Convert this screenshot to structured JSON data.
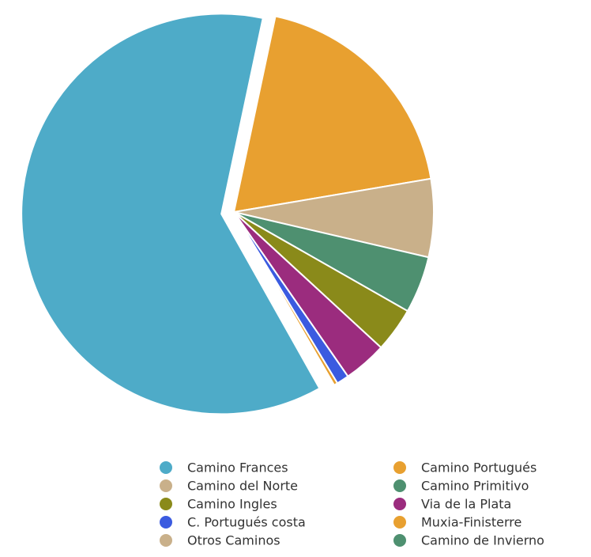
{
  "chart_data": {
    "type": "pie",
    "categories": [
      "Camino Frances",
      "Camino Portugués",
      "Camino del Norte",
      "Camino Primitivo",
      "Camino Ingles",
      "Via de la Plata",
      "C. Portugués costa",
      "Muxia-Finisterre",
      "Otros Caminos",
      "Camino de Invierno"
    ],
    "values": [
      61.5,
      19,
      6.3,
      4.6,
      3.6,
      3.5,
      1.0,
      0.3,
      0.1,
      0.1
    ],
    "colors": [
      "#4eabc8",
      "#e8a030",
      "#c9b08a",
      "#4e9070",
      "#8a8a1a",
      "#9b2c7e",
      "#3b5be0",
      "#e8a030",
      "#c9b08a",
      "#4e9070"
    ],
    "legend": "bottom"
  }
}
